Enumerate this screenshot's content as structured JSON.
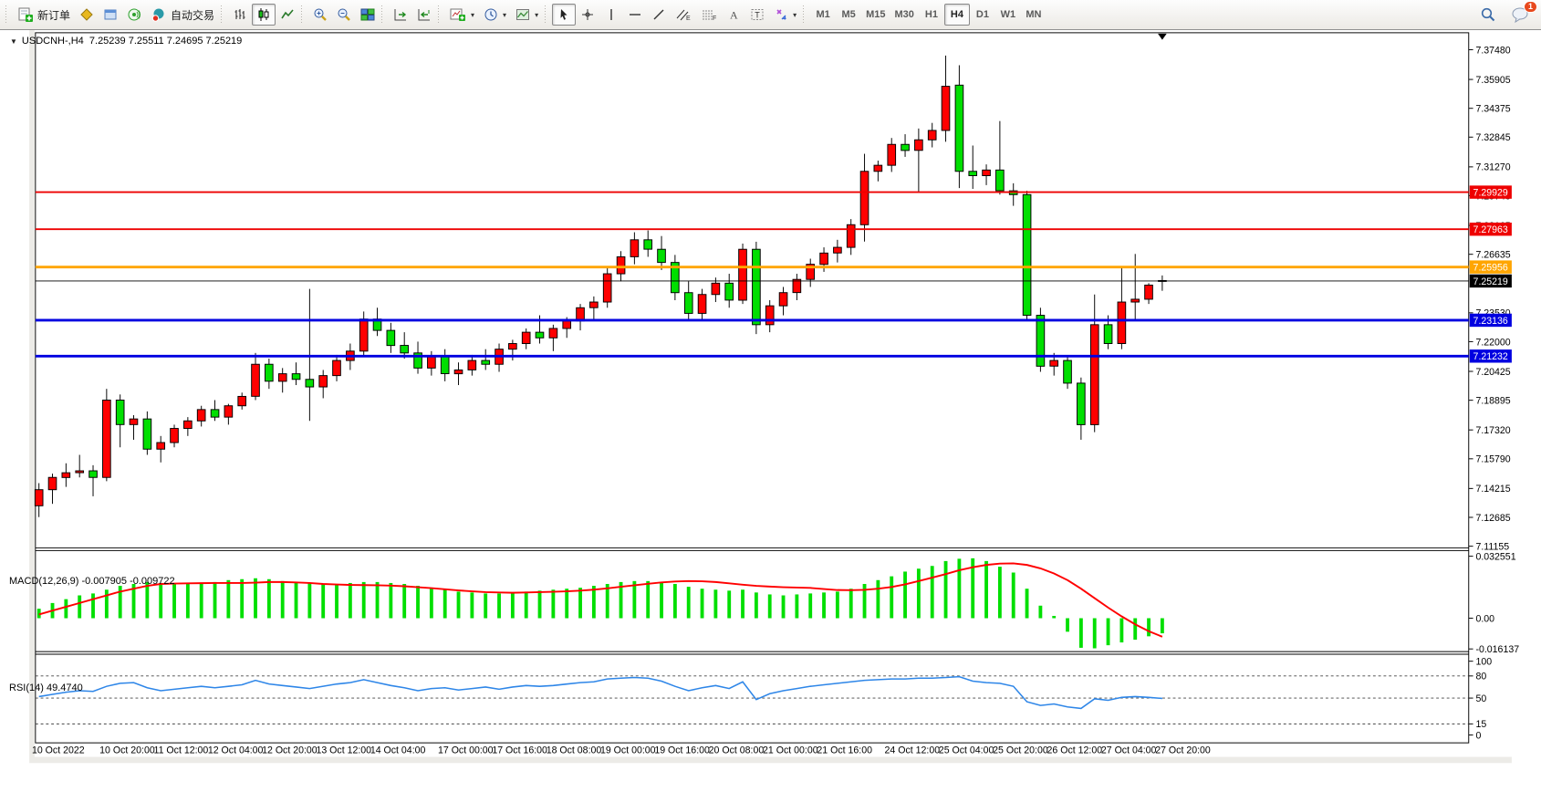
{
  "toolbar": {
    "groups": [
      {
        "name": "trade",
        "buttons": [
          {
            "icon": "new-order-icon",
            "label": "新订单",
            "name": "new-order-button"
          },
          {
            "icon": "market-watch-icon",
            "name": "market-watch-button"
          },
          {
            "icon": "data-window-icon",
            "name": "data-window-button"
          },
          {
            "icon": "signals-icon",
            "name": "signals-button"
          },
          {
            "icon": "auto-trading-icon",
            "label": "自动交易",
            "name": "auto-trading-button"
          }
        ]
      },
      {
        "name": "chart-type",
        "buttons": [
          {
            "icon": "bar-chart-icon",
            "name": "bar-chart-button"
          },
          {
            "icon": "candlestick-chart-icon",
            "name": "candlestick-chart-button",
            "active": true
          },
          {
            "icon": "line-chart-icon",
            "name": "line-chart-button"
          }
        ]
      },
      {
        "name": "zoom",
        "buttons": [
          {
            "icon": "zoom-in-icon",
            "name": "zoom-in-button"
          },
          {
            "icon": "zoom-out-icon",
            "name": "zoom-out-button"
          },
          {
            "icon": "tile-windows-icon",
            "name": "tile-windows-button"
          }
        ]
      },
      {
        "name": "scroll",
        "buttons": [
          {
            "icon": "auto-scroll-icon",
            "name": "auto-scroll-button"
          },
          {
            "icon": "chart-shift-icon",
            "name": "chart-shift-button"
          }
        ]
      },
      {
        "name": "dropdowns",
        "buttons": [
          {
            "icon": "indicators-icon",
            "name": "indicators-button",
            "dropdown": true
          },
          {
            "icon": "periods-icon",
            "name": "periods-button",
            "dropdown": true
          },
          {
            "icon": "templates-icon",
            "name": "templates-button",
            "dropdown": true
          }
        ]
      },
      {
        "name": "drawing",
        "buttons": [
          {
            "icon": "cursor-icon",
            "name": "cursor-button",
            "active": true
          },
          {
            "icon": "crosshair-icon",
            "name": "crosshair-button"
          },
          {
            "icon": "vertical-line-icon",
            "name": "vertical-line-button"
          },
          {
            "icon": "horizontal-line-icon",
            "name": "horizontal-line-button"
          },
          {
            "icon": "trendline-icon",
            "name": "trendline-button"
          },
          {
            "icon": "channel-icon",
            "name": "equidistant-channel-button"
          },
          {
            "icon": "fibonacci-icon",
            "name": "fibonacci-button"
          },
          {
            "icon": "text-icon",
            "name": "text-button"
          },
          {
            "icon": "text-label-icon",
            "name": "text-label-button"
          },
          {
            "icon": "arrows-icon",
            "name": "arrows-button",
            "dropdown": true
          }
        ]
      },
      {
        "name": "timeframes",
        "buttons": [
          {
            "label": "M1",
            "name": "timeframe-m1"
          },
          {
            "label": "M5",
            "name": "timeframe-m5"
          },
          {
            "label": "M15",
            "name": "timeframe-m15"
          },
          {
            "label": "M30",
            "name": "timeframe-m30"
          },
          {
            "label": "H1",
            "name": "timeframe-h1"
          },
          {
            "label": "H4",
            "name": "timeframe-h4",
            "active": true
          },
          {
            "label": "D1",
            "name": "timeframe-d1"
          },
          {
            "label": "W1",
            "name": "timeframe-w1"
          },
          {
            "label": "MN",
            "name": "timeframe-mn"
          }
        ]
      }
    ],
    "right": [
      {
        "icon": "search-icon",
        "name": "search-button"
      },
      {
        "icon": "chat-icon",
        "name": "chat-button",
        "badge": "1"
      }
    ]
  },
  "chart": {
    "title": "USDCNH-,H4",
    "ohlc": "7.25239 7.25511 7.24695 7.25219",
    "macd_label": "MACD(12,26,9) -0.007905 -0.009722",
    "rsi_label": "RSI(14) 49.4740"
  },
  "chart_data": {
    "type": "candlestick",
    "symbol": "USDCNH-",
    "timeframe": "H4",
    "last_ohlc": {
      "open": 7.25239,
      "high": 7.25511,
      "low": 7.24695,
      "close": 7.25219
    },
    "up_color": "#FF0000",
    "down_color": "#00DF00",
    "wick_color": "#000000",
    "price_range": [
      7.1106,
      7.3838
    ],
    "bars": [
      [
        7.133,
        7.145,
        7.127,
        7.1415
      ],
      [
        7.1415,
        7.15,
        7.134,
        7.148
      ],
      [
        7.148,
        7.1555,
        7.143,
        7.1505
      ],
      [
        7.1505,
        7.16,
        7.148,
        7.1515
      ],
      [
        7.1515,
        7.1545,
        7.138,
        7.148
      ],
      [
        7.148,
        7.195,
        7.146,
        7.189
      ],
      [
        7.189,
        7.192,
        7.164,
        7.176
      ],
      [
        7.176,
        7.181,
        7.168,
        7.179
      ],
      [
        7.179,
        7.183,
        7.16,
        7.163
      ],
      [
        7.163,
        7.17,
        7.156,
        7.1665
      ],
      [
        7.1665,
        7.176,
        7.164,
        7.174
      ],
      [
        7.174,
        7.18,
        7.17,
        7.178
      ],
      [
        7.178,
        7.186,
        7.175,
        7.184
      ],
      [
        7.184,
        7.189,
        7.178,
        7.18
      ],
      [
        7.18,
        7.187,
        7.176,
        7.186
      ],
      [
        7.186,
        7.193,
        7.184,
        7.191
      ],
      [
        7.191,
        7.214,
        7.189,
        7.208
      ],
      [
        7.208,
        7.211,
        7.195,
        7.199
      ],
      [
        7.199,
        7.206,
        7.193,
        7.203
      ],
      [
        7.203,
        7.209,
        7.197,
        7.2
      ],
      [
        7.2,
        7.248,
        7.178,
        7.196
      ],
      [
        7.196,
        7.205,
        7.19,
        7.202
      ],
      [
        7.202,
        7.213,
        7.199,
        7.21
      ],
      [
        7.21,
        7.219,
        7.205,
        7.215
      ],
      [
        7.215,
        7.236,
        7.212,
        7.232
      ],
      [
        7.232,
        7.238,
        7.223,
        7.226
      ],
      [
        7.226,
        7.23,
        7.214,
        7.218
      ],
      [
        7.218,
        7.225,
        7.211,
        7.214
      ],
      [
        7.214,
        7.22,
        7.203,
        7.206
      ],
      [
        7.206,
        7.215,
        7.202,
        7.212
      ],
      [
        7.212,
        7.216,
        7.199,
        7.203
      ],
      [
        7.203,
        7.209,
        7.197,
        7.205
      ],
      [
        7.205,
        7.213,
        7.202,
        7.21
      ],
      [
        7.21,
        7.216,
        7.205,
        7.208
      ],
      [
        7.208,
        7.219,
        7.204,
        7.216
      ],
      [
        7.216,
        7.221,
        7.21,
        7.219
      ],
      [
        7.219,
        7.227,
        7.216,
        7.225
      ],
      [
        7.225,
        7.234,
        7.219,
        7.222
      ],
      [
        7.222,
        7.229,
        7.215,
        7.227
      ],
      [
        7.227,
        7.233,
        7.222,
        7.231
      ],
      [
        7.231,
        7.24,
        7.226,
        7.238
      ],
      [
        7.238,
        7.244,
        7.232,
        7.241
      ],
      [
        7.241,
        7.259,
        7.238,
        7.256
      ],
      [
        7.256,
        7.268,
        7.252,
        7.265
      ],
      [
        7.265,
        7.278,
        7.261,
        7.274
      ],
      [
        7.274,
        7.279,
        7.265,
        7.269
      ],
      [
        7.269,
        7.276,
        7.258,
        7.262
      ],
      [
        7.262,
        7.266,
        7.242,
        7.246
      ],
      [
        7.246,
        7.252,
        7.231,
        7.235
      ],
      [
        7.235,
        7.248,
        7.232,
        7.245
      ],
      [
        7.245,
        7.254,
        7.241,
        7.251
      ],
      [
        7.251,
        7.256,
        7.238,
        7.242
      ],
      [
        7.242,
        7.272,
        7.24,
        7.269
      ],
      [
        7.269,
        7.273,
        7.224,
        7.229
      ],
      [
        7.229,
        7.242,
        7.225,
        7.239
      ],
      [
        7.239,
        7.249,
        7.234,
        7.246
      ],
      [
        7.246,
        7.256,
        7.242,
        7.253
      ],
      [
        7.253,
        7.264,
        7.249,
        7.261
      ],
      [
        7.261,
        7.27,
        7.257,
        7.267
      ],
      [
        7.267,
        7.274,
        7.262,
        7.27
      ],
      [
        7.27,
        7.285,
        7.266,
        7.282
      ],
      [
        7.282,
        7.3196,
        7.2731,
        7.3103
      ],
      [
        7.3103,
        7.316,
        7.305,
        7.3135
      ],
      [
        7.3135,
        7.328,
        7.31,
        7.3246
      ],
      [
        7.3246,
        7.33,
        7.318,
        7.3214
      ],
      [
        7.3214,
        7.333,
        7.2991,
        7.327
      ],
      [
        7.327,
        7.336,
        7.323,
        7.332
      ],
      [
        7.332,
        7.3717,
        7.326,
        7.3554
      ],
      [
        7.356,
        7.3666,
        7.3014,
        7.3103
      ],
      [
        7.3103,
        7.324,
        7.301,
        7.308
      ],
      [
        7.308,
        7.314,
        7.303,
        7.311
      ],
      [
        7.311,
        7.337,
        7.298,
        7.3
      ],
      [
        7.3,
        7.304,
        7.292,
        7.298
      ],
      [
        7.298,
        7.3,
        7.232,
        7.234
      ],
      [
        7.234,
        7.238,
        7.204,
        7.207
      ],
      [
        7.207,
        7.214,
        7.202,
        7.21
      ],
      [
        7.21,
        7.212,
        7.195,
        7.198
      ],
      [
        7.198,
        7.201,
        7.168,
        7.176
      ],
      [
        7.176,
        7.245,
        7.172,
        7.229
      ],
      [
        7.229,
        7.234,
        7.216,
        7.219
      ],
      [
        7.219,
        7.26,
        7.216,
        7.241
      ],
      [
        7.241,
        7.2665,
        7.231,
        7.2425
      ],
      [
        7.2425,
        7.251,
        7.24,
        7.25
      ],
      [
        7.25239,
        7.25511,
        7.24695,
        7.25219
      ]
    ],
    "x_labels": [
      {
        "bar": 0,
        "text": "10 Oct 2022"
      },
      {
        "bar": 5,
        "text": "10 Oct 20:00"
      },
      {
        "bar": 9,
        "text": "11 Oct 12:00"
      },
      {
        "bar": 13,
        "text": "12 Oct 04:00"
      },
      {
        "bar": 17,
        "text": "12 Oct 20:00"
      },
      {
        "bar": 21,
        "text": "13 Oct 12:00"
      },
      {
        "bar": 25,
        "text": "14 Oct 04:00"
      },
      {
        "bar": 30,
        "text": "17 Oct 00:00"
      },
      {
        "bar": 34,
        "text": "17 Oct 16:00"
      },
      {
        "bar": 38,
        "text": "18 Oct 08:00"
      },
      {
        "bar": 42,
        "text": "19 Oct 00:00"
      },
      {
        "bar": 46,
        "text": "19 Oct 16:00"
      },
      {
        "bar": 50,
        "text": "20 Oct 08:00"
      },
      {
        "bar": 54,
        "text": "21 Oct 00:00"
      },
      {
        "bar": 58,
        "text": "21 Oct 16:00"
      },
      {
        "bar": 63,
        "text": "24 Oct 12:00"
      },
      {
        "bar": 67,
        "text": "25 Oct 04:00"
      },
      {
        "bar": 71,
        "text": "25 Oct 20:00"
      },
      {
        "bar": 75,
        "text": "26 Oct 12:00"
      },
      {
        "bar": 79,
        "text": "27 Oct 04:00"
      },
      {
        "bar": 83,
        "text": "27 Oct 20:00"
      }
    ],
    "y_ticks": [
      "7.37480",
      "7.35905",
      "7.34375",
      "7.32845",
      "7.31270",
      "7.29740",
      "7.28165",
      "7.26635",
      "7.23530",
      "7.22000",
      "7.20425",
      "7.18895",
      "7.17320",
      "7.15790",
      "7.14215",
      "7.12685",
      "7.11155"
    ],
    "hlines": [
      {
        "price": 7.29929,
        "label": "7.29929",
        "color": "#EE0000",
        "width": 2
      },
      {
        "price": 7.27963,
        "label": "7.27963",
        "color": "#EE0000",
        "width": 2
      },
      {
        "price": 7.25956,
        "label": "7.25956",
        "color": "#FFA500",
        "width": 3
      },
      {
        "price": 7.25219,
        "label": "7.25219",
        "color": "#000000",
        "width": 1
      },
      {
        "price": 7.23136,
        "label": "7.23136",
        "color": "#0000E0",
        "width": 3
      },
      {
        "price": 7.21232,
        "label": "7.21232",
        "color": "#0000E0",
        "width": 3
      }
    ],
    "macd": {
      "params": "12,26,9",
      "value": -0.007905,
      "signal_value": -0.009722,
      "range": [
        -0.0175,
        0.0355
      ],
      "ticks": [
        {
          "text": "0.032551",
          "v": 0.032551
        },
        {
          "text": "0.00",
          "v": 0
        },
        {
          "text": "-0.016137",
          "v": -0.016137
        }
      ],
      "histogram_color": "#00DF00",
      "signal_color": "#FF0000",
      "histogram": [
        0.005,
        0.008,
        0.01,
        0.012,
        0.013,
        0.015,
        0.017,
        0.018,
        0.019,
        0.0185,
        0.018,
        0.018,
        0.0185,
        0.019,
        0.02,
        0.0205,
        0.021,
        0.0205,
        0.0195,
        0.019,
        0.0185,
        0.018,
        0.018,
        0.0185,
        0.019,
        0.019,
        0.0185,
        0.018,
        0.017,
        0.016,
        0.015,
        0.014,
        0.0135,
        0.013,
        0.013,
        0.0135,
        0.014,
        0.0145,
        0.015,
        0.0155,
        0.016,
        0.017,
        0.018,
        0.019,
        0.0195,
        0.0195,
        0.019,
        0.018,
        0.0165,
        0.0155,
        0.015,
        0.0145,
        0.015,
        0.0135,
        0.0125,
        0.012,
        0.0125,
        0.013,
        0.0135,
        0.014,
        0.0155,
        0.018,
        0.02,
        0.022,
        0.0245,
        0.026,
        0.0275,
        0.03,
        0.0312,
        0.0315,
        0.03,
        0.027,
        0.024,
        0.0155,
        0.0066,
        0.0012,
        -0.0071,
        -0.0155,
        -0.0158,
        -0.0142,
        -0.0127,
        -0.0113,
        -0.0095,
        -0.0079
      ],
      "signal": [
        0.002,
        0.004,
        0.006,
        0.008,
        0.01,
        0.012,
        0.014,
        0.0155,
        0.017,
        0.018,
        0.0182,
        0.0183,
        0.0184,
        0.0185,
        0.0185,
        0.0185,
        0.0187,
        0.019,
        0.019,
        0.0188,
        0.0185,
        0.018,
        0.0177,
        0.0175,
        0.0174,
        0.0173,
        0.0171,
        0.0168,
        0.0163,
        0.0158,
        0.0152,
        0.0146,
        0.0141,
        0.0137,
        0.0135,
        0.0134,
        0.0135,
        0.0137,
        0.0139,
        0.0141,
        0.0145,
        0.015,
        0.0157,
        0.0165,
        0.0173,
        0.0181,
        0.0188,
        0.0193,
        0.0195,
        0.0194,
        0.019,
        0.0183,
        0.0176,
        0.017,
        0.0166,
        0.0163,
        0.0161,
        0.0159,
        0.0153,
        0.0148,
        0.0147,
        0.0149,
        0.0155,
        0.0164,
        0.0178,
        0.0195,
        0.0213,
        0.0232,
        0.0252,
        0.0268,
        0.028,
        0.0287,
        0.0288,
        0.028,
        0.0262,
        0.0235,
        0.02,
        0.0155,
        0.0105,
        0.0056,
        0.001,
        -0.0032,
        -0.0068,
        -0.0097
      ]
    },
    "rsi": {
      "period": 14,
      "value": 49.474,
      "color": "#2E86E8",
      "levels": [
        80,
        50,
        15
      ],
      "ticks": [
        {
          "text": "100",
          "v": 100
        },
        {
          "text": "80",
          "v": 80
        },
        {
          "text": "50",
          "v": 50
        },
        {
          "text": "15",
          "v": 15
        },
        {
          "text": "0",
          "v": 0
        }
      ],
      "values": [
        52,
        55,
        58,
        60,
        59,
        66,
        70,
        71,
        64,
        60,
        62,
        64,
        66,
        64,
        66,
        68,
        74,
        69,
        67,
        65,
        63,
        66,
        69,
        71,
        75,
        71,
        67,
        64,
        60,
        63,
        64,
        61,
        63,
        65,
        62,
        65,
        67,
        66,
        67,
        69,
        71,
        72,
        76,
        77,
        78,
        77,
        73,
        66,
        60,
        64,
        67,
        63,
        72,
        48,
        56,
        60,
        63,
        66,
        68,
        70,
        72,
        74,
        75,
        76,
        76,
        77,
        77,
        78,
        79,
        73,
        71,
        70,
        66,
        45,
        40,
        42,
        38,
        36,
        49,
        47,
        51,
        52,
        51,
        49.474
      ]
    }
  }
}
